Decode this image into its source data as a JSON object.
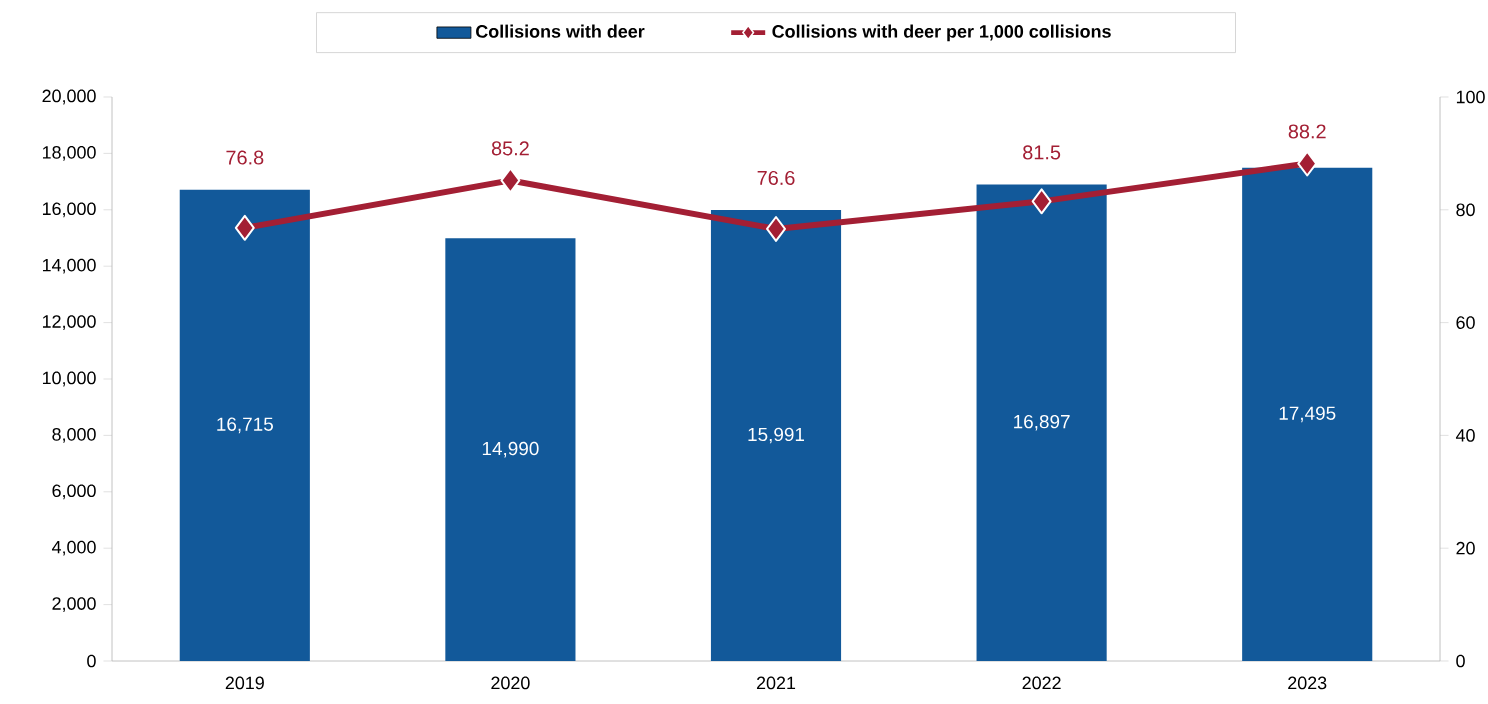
{
  "chart_data": {
    "type": "bar",
    "categories": [
      "2019",
      "2020",
      "2021",
      "2022",
      "2023"
    ],
    "series": [
      {
        "name": "Collisions with deer",
        "color": "#12599a",
        "values": [
          16715,
          14990,
          15991,
          16897,
          17495
        ],
        "value_labels": [
          "16,715",
          "14,990",
          "15,991",
          "16,897",
          "17,495"
        ]
      },
      {
        "name": "Collisions with deer per 1,000 collisions",
        "type": "line",
        "axis": "y2",
        "color": "#a31f34",
        "marker": "diamond",
        "values": [
          76.8,
          85.2,
          76.6,
          81.5,
          88.2
        ],
        "value_labels": [
          "76.8",
          "85.2",
          "76.6",
          "81.5",
          "88.2"
        ]
      }
    ],
    "ylim": [
      0,
      20000
    ],
    "yticks": [
      0,
      {
        "value": 2000,
        "label": "2,000"
      },
      {
        "value": 4000,
        "label": "4,000"
      },
      {
        "value": 6000,
        "label": "6,000"
      },
      {
        "value": 8000,
        "label": "8,000"
      },
      {
        "value": 10000,
        "label": "10,000"
      },
      {
        "value": 12000,
        "label": "12,000"
      },
      {
        "value": 14000,
        "label": "14,000"
      },
      {
        "value": 16000,
        "label": "16,000"
      },
      {
        "value": 18000,
        "label": "18,000"
      },
      {
        "value": 20000,
        "label": "20,000"
      }
    ],
    "y2lim": [
      0,
      100
    ],
    "y2ticks": [
      0,
      20,
      40,
      60,
      80,
      100
    ],
    "legend": "top"
  }
}
